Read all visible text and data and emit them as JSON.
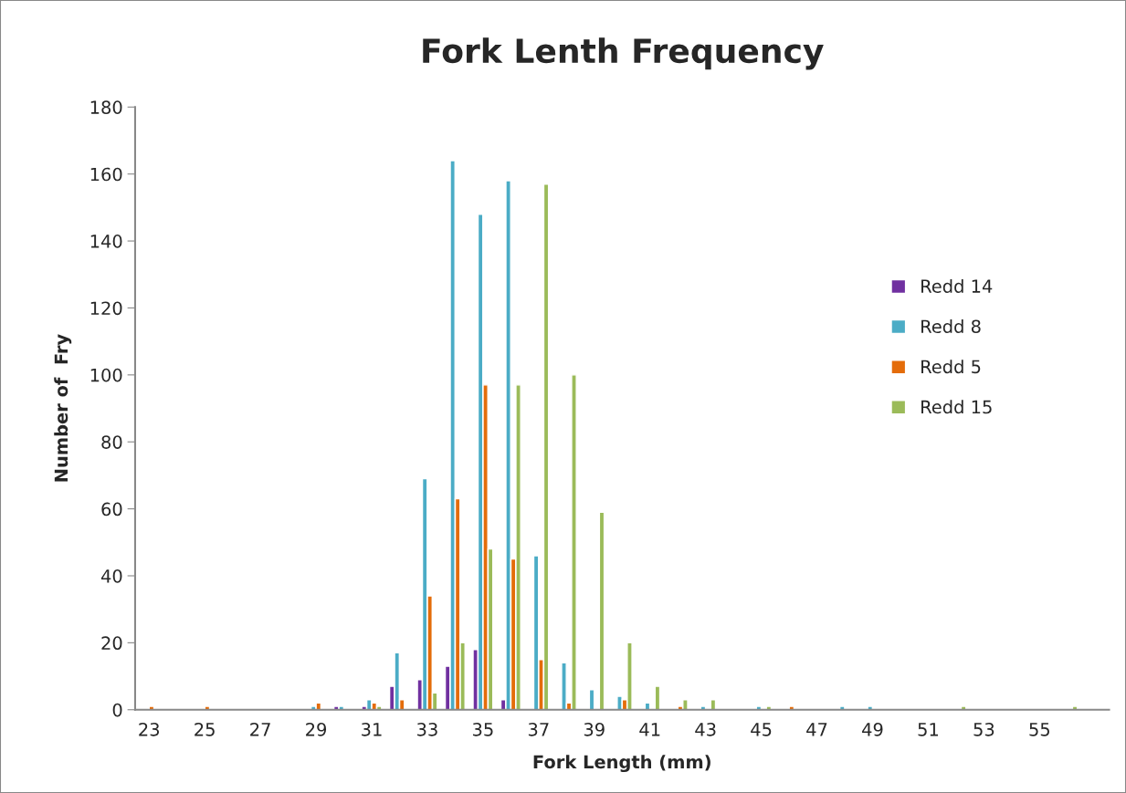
{
  "chart_data": {
    "type": "bar",
    "title": "Fork Lenth Frequency",
    "xlabel": "Fork Length (mm)",
    "ylabel": "Number of  Fry",
    "categories": [
      "23",
      null,
      "25",
      null,
      "27",
      null,
      "29",
      null,
      "31",
      null,
      "33",
      null,
      "35",
      null,
      "37",
      null,
      "39",
      null,
      "41",
      null,
      "43",
      null,
      "45",
      null,
      "47",
      null,
      "49",
      null,
      "51",
      null,
      "53",
      null,
      "55",
      null,
      null
    ],
    "series": [
      {
        "name": "Redd 14",
        "color": "#7030a0",
        "values": [
          null,
          null,
          null,
          null,
          null,
          null,
          null,
          1,
          1,
          7,
          9,
          13,
          18,
          3,
          null,
          null,
          null,
          null,
          null,
          null,
          null,
          null,
          null,
          null,
          null,
          null,
          null,
          null,
          null,
          null,
          null,
          null,
          null,
          null,
          null
        ]
      },
      {
        "name": "Redd 8",
        "color": "#4bacc6",
        "values": [
          null,
          null,
          null,
          null,
          null,
          null,
          1,
          1,
          3,
          17,
          69,
          164,
          148,
          158,
          46,
          14,
          6,
          4,
          2,
          null,
          1,
          null,
          1,
          null,
          null,
          1,
          1,
          null,
          null,
          null,
          null,
          null,
          null,
          null,
          null
        ]
      },
      {
        "name": "Redd 5",
        "color": "#e46c0a",
        "values": [
          1,
          null,
          1,
          null,
          null,
          null,
          2,
          null,
          2,
          3,
          34,
          63,
          97,
          45,
          15,
          2,
          null,
          3,
          null,
          1,
          null,
          null,
          null,
          1,
          null,
          null,
          null,
          null,
          null,
          null,
          null,
          null,
          null,
          null,
          null
        ]
      },
      {
        "name": "Redd 15",
        "color": "#9bbb59",
        "values": [
          null,
          null,
          null,
          null,
          null,
          null,
          null,
          null,
          1,
          null,
          5,
          20,
          48,
          97,
          157,
          100,
          59,
          20,
          7,
          3,
          3,
          null,
          1,
          null,
          null,
          null,
          null,
          null,
          null,
          1,
          null,
          null,
          null,
          1,
          null
        ]
      }
    ],
    "ylim": [
      0,
      180
    ],
    "yticks": [
      0,
      20,
      40,
      60,
      80,
      100,
      120,
      140,
      160,
      180
    ],
    "grid": false,
    "legend": "right"
  }
}
